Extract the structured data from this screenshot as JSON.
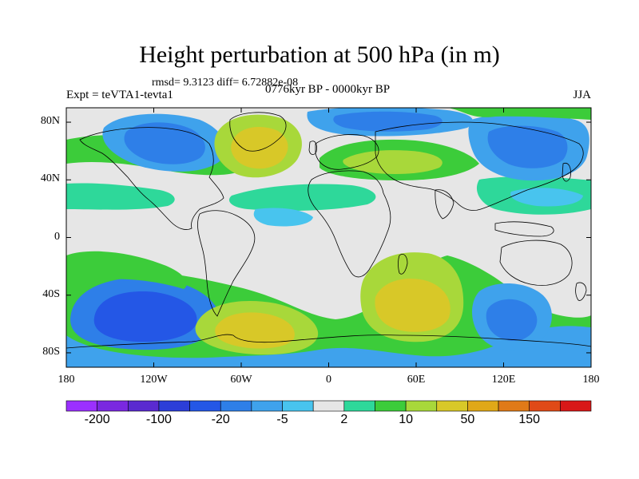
{
  "title": "Height perturbation at 500 hPa (in m)",
  "stats": "rmsd= 9.3123 diff= 6.72882e-08",
  "expt": "Expt = teVTA1-tevta1",
  "period": "0776kyr BP - 0000kyr BP",
  "season": "JJA",
  "lat_labels": [
    "80N",
    "40N",
    "0",
    "40S",
    "80S"
  ],
  "lat_values": [
    80,
    40,
    0,
    -40,
    -80
  ],
  "lon_labels": [
    "180",
    "120W",
    "60W",
    "0",
    "60E",
    "120E",
    "180"
  ],
  "lon_values": [
    -180,
    -120,
    -60,
    0,
    60,
    120,
    180
  ],
  "colorbar": {
    "colors": [
      "#9b30ff",
      "#7a28e0",
      "#5a2ad0",
      "#2c3ed8",
      "#2457e6",
      "#2e7fe8",
      "#3fa2ec",
      "#48c4ee",
      "#e6e6e6",
      "#2ed89a",
      "#3ccc3a",
      "#a8d83a",
      "#d8c828",
      "#e0a818",
      "#e07a18",
      "#e04a18",
      "#d81818"
    ],
    "labels": [
      "-200",
      "-100",
      "-20",
      "-5",
      "2",
      "10",
      "50",
      "150"
    ]
  },
  "field_colors": {
    "neutral": "#e6e6e6",
    "pos1": "#2ed89a",
    "pos2": "#3ccc3a",
    "pos3": "#a8d83a",
    "pos4": "#d8c828",
    "pos5": "#e0a818",
    "neg1": "#48c4ee",
    "neg2": "#3fa2ec",
    "neg3": "#2e7fe8",
    "neg4": "#2457e6"
  }
}
